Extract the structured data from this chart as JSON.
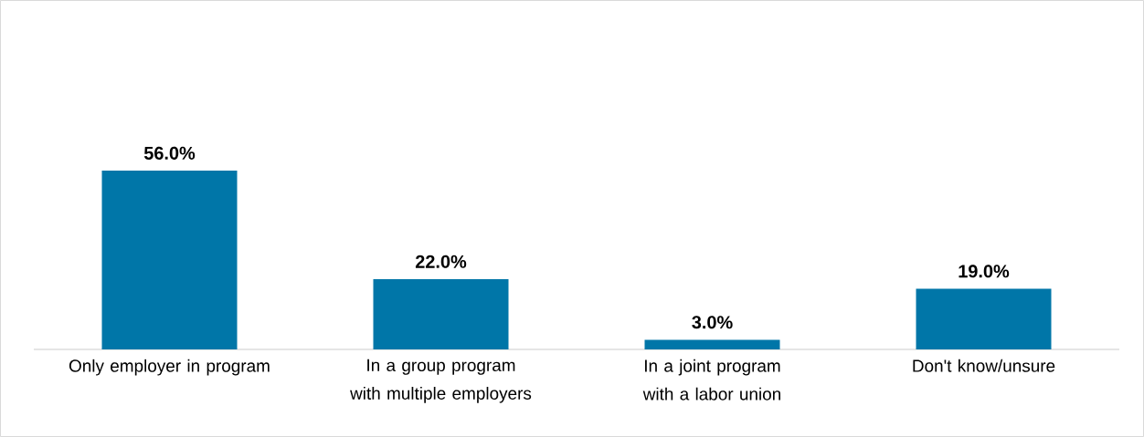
{
  "chart_data": {
    "type": "bar",
    "categories": [
      "Only employer in program",
      "In a group program with multiple employers",
      "In a joint program with a labor union",
      "Don't know/unsure"
    ],
    "values": [
      56,
      22,
      3,
      19
    ],
    "value_labels": [
      "56.0%",
      "22.0%",
      "3.0%",
      "19.0%"
    ],
    "color": "#0076a8"
  }
}
